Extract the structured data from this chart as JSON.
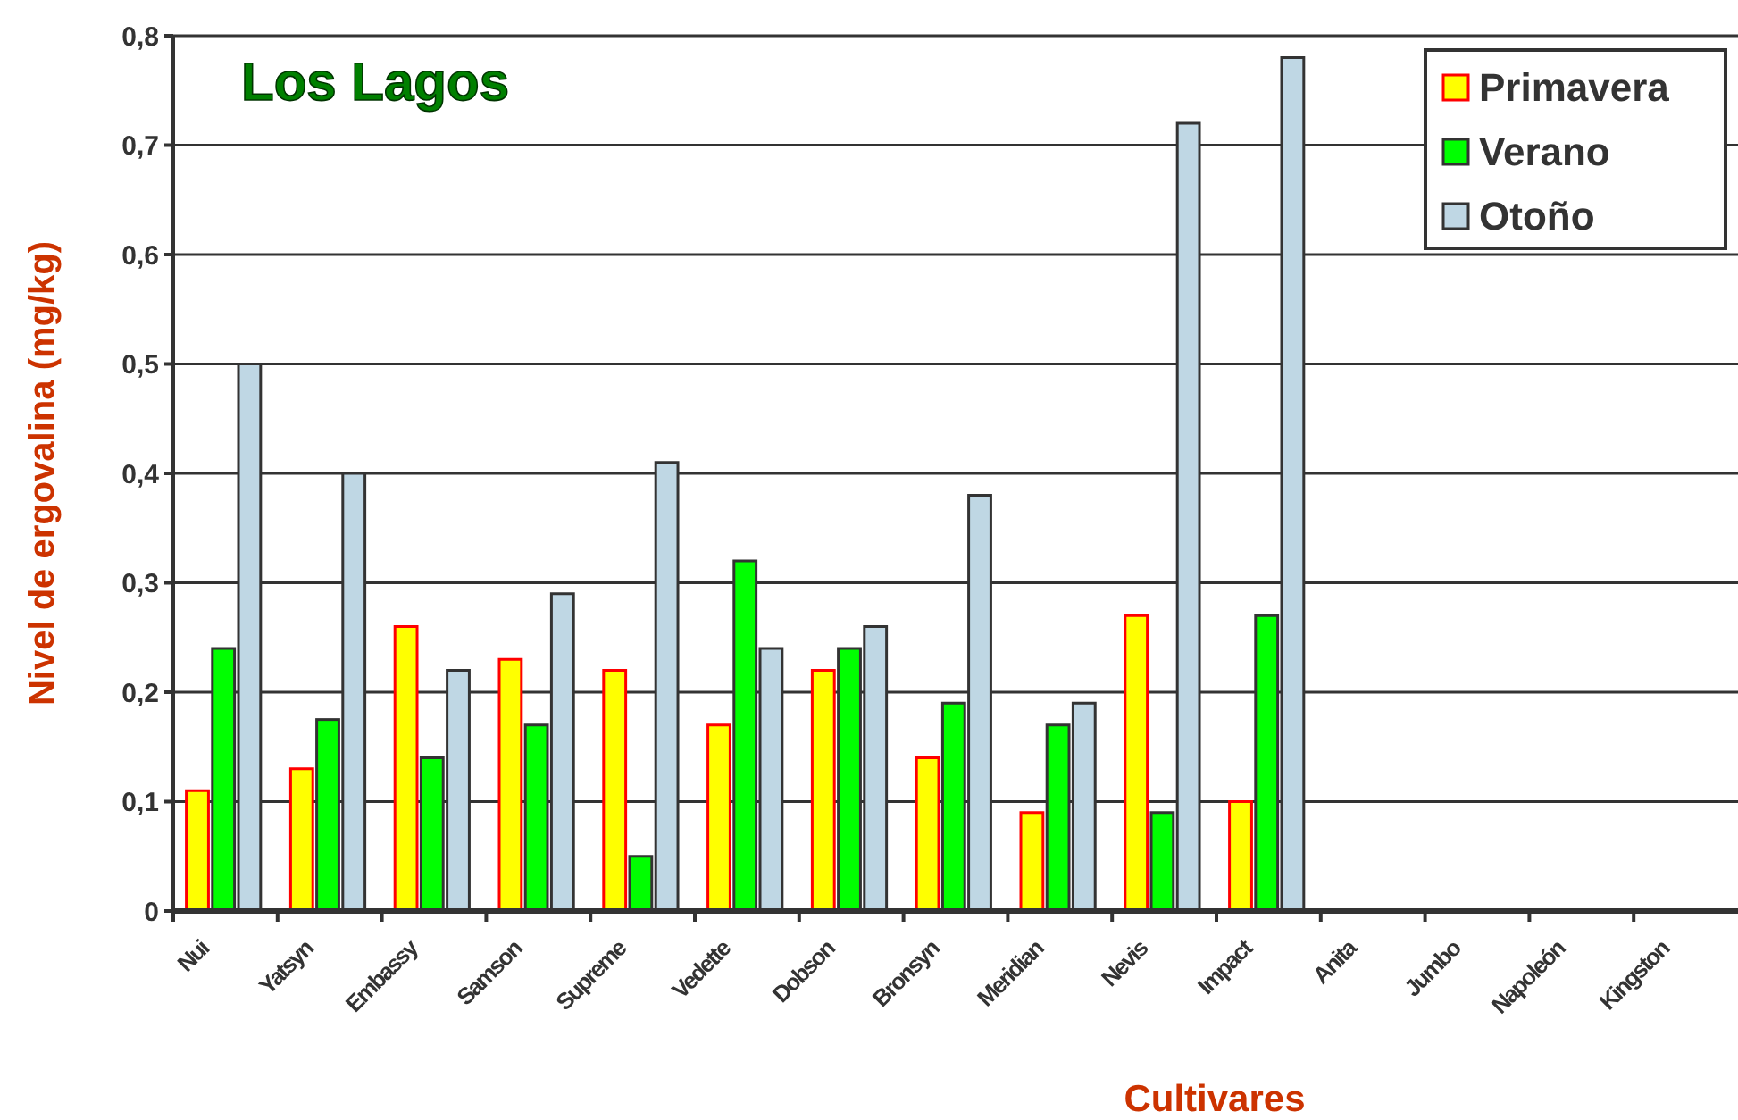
{
  "chart_data": {
    "type": "bar",
    "title": "Los Lagos",
    "xlabel": "Cultivares",
    "ylabel": "Nivel de ergovalina (mg/kg)",
    "categories": [
      "Nui",
      "Yatsyn",
      "Embassy",
      "Samson",
      "Supreme",
      "Vedette",
      "Dobson",
      "Bronsyn",
      "Meridian",
      "Nevis",
      "Impact",
      "Anita",
      "Jumbo",
      "Napoleón",
      "Kingston"
    ],
    "series": [
      {
        "name": "Primavera",
        "color": "#ffff00",
        "values": [
          0.11,
          0.13,
          0.26,
          0.23,
          0.22,
          0.17,
          0.22,
          0.14,
          0.09,
          0.27,
          0.1,
          0,
          0,
          0,
          0
        ]
      },
      {
        "name": "Verano",
        "color": "#00ff00",
        "values": [
          0.24,
          0.175,
          0.14,
          0.17,
          0.05,
          0.32,
          0.24,
          0.19,
          0.17,
          0.09,
          0.27,
          null,
          null,
          null,
          null
        ]
      },
      {
        "name": "Otoño",
        "color": "#bfd7e4",
        "values": [
          0.5,
          0.4,
          0.22,
          0.29,
          0.41,
          0.24,
          0.26,
          0.38,
          0.19,
          0.72,
          0.78,
          null,
          null,
          null,
          null
        ]
      }
    ],
    "ylim": [
      0,
      0.8
    ],
    "yticks": [
      0,
      {
        "value": 0.1,
        "label": "0,1"
      },
      {
        "value": 0.2,
        "label": "0,2"
      },
      {
        "value": 0.3,
        "label": "0,3"
      },
      {
        "value": 0.4,
        "label": "0,4"
      },
      {
        "value": 0.5,
        "label": "0,5"
      },
      {
        "value": 0.6,
        "label": "0,6"
      },
      {
        "value": 0.7,
        "label": "0,7"
      },
      {
        "value": 0.8,
        "label": "0,8"
      }
    ],
    "grid": "y",
    "legend": "top right"
  }
}
